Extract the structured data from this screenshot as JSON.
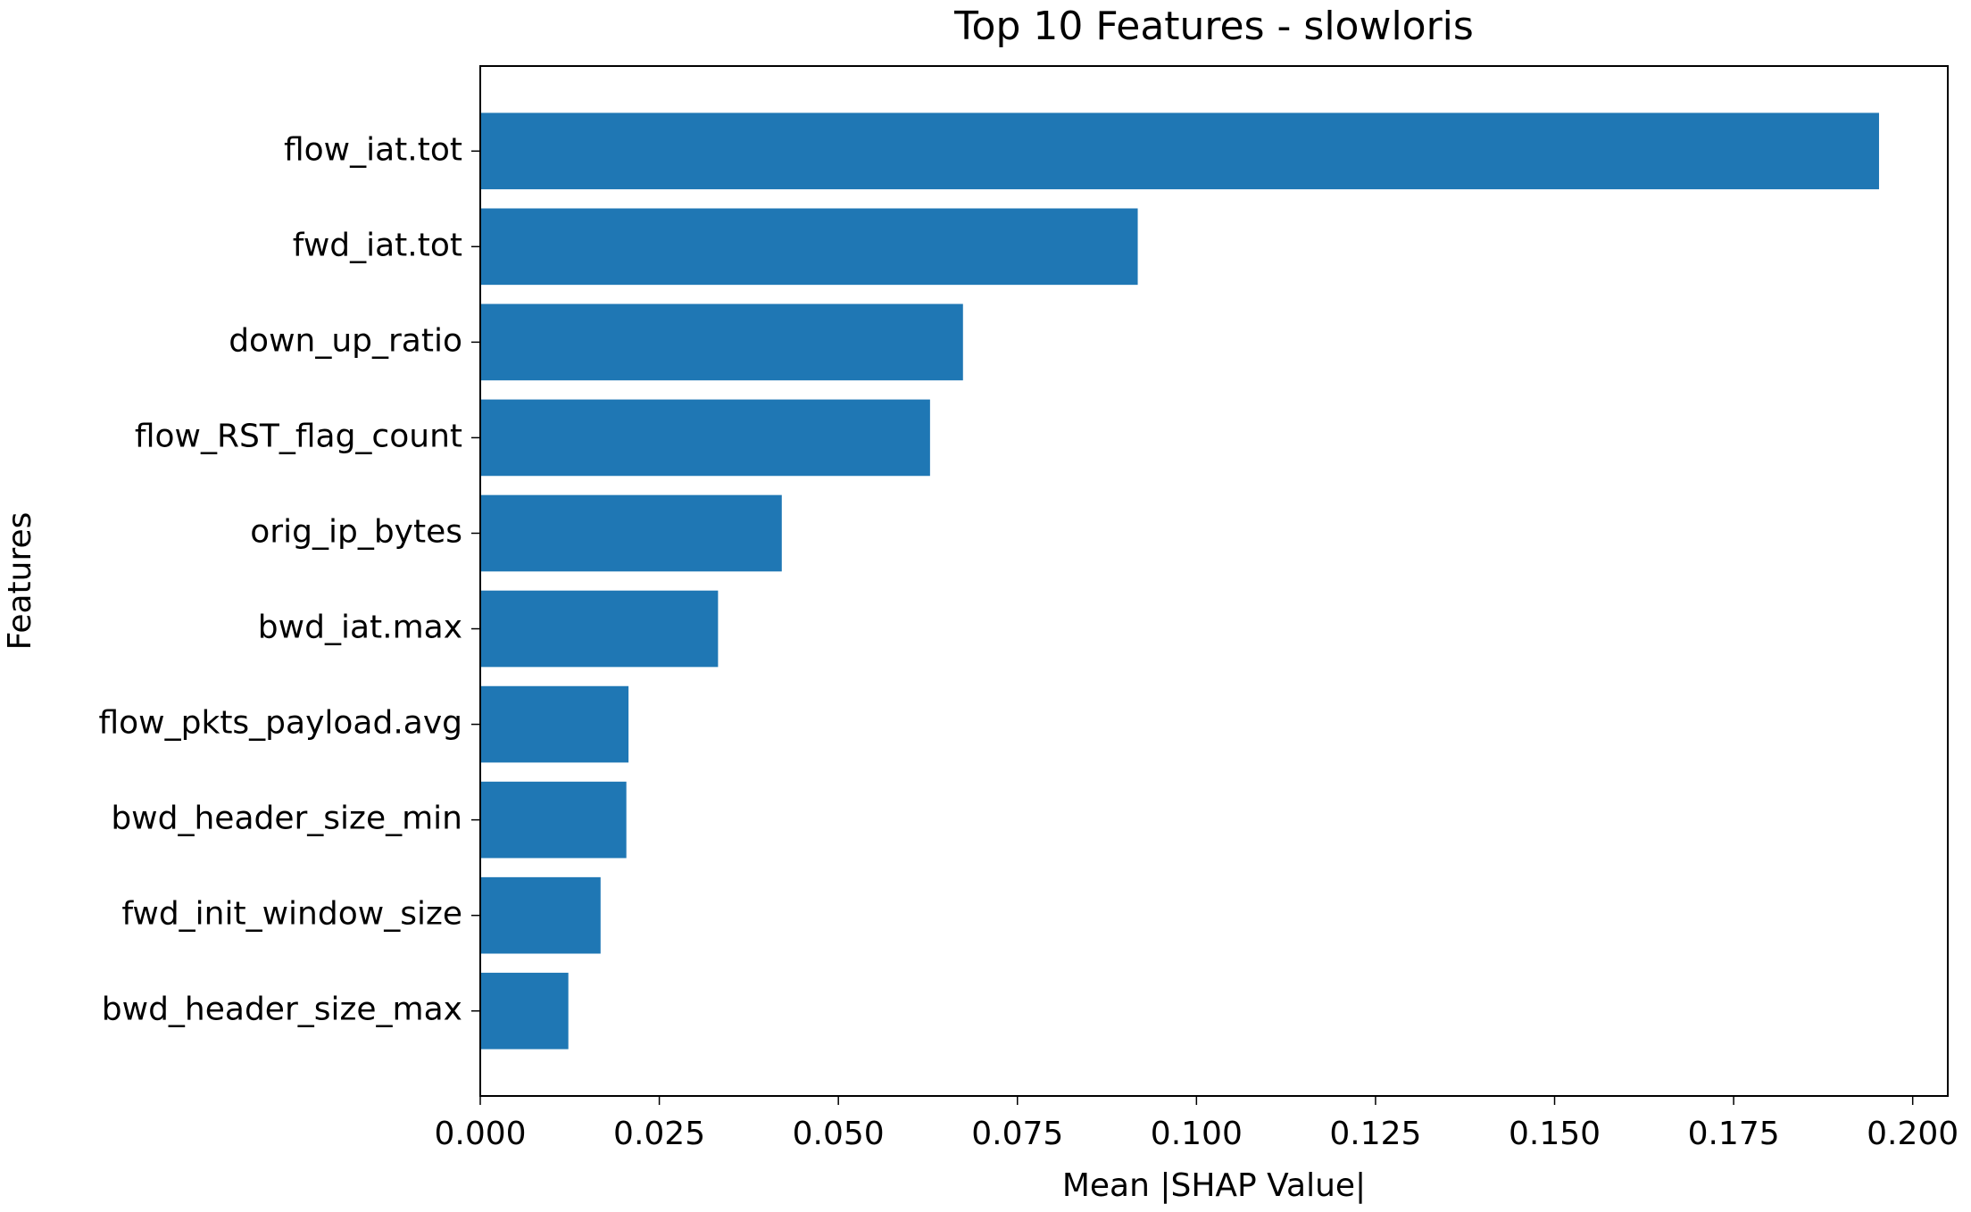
{
  "chart_data": {
    "type": "barh",
    "title": "Top 10 Features - slowloris",
    "x_label": "Mean |SHAP Value|",
    "y_label": "Features",
    "categories": [
      "flow_iat.tot",
      "fwd_iat.tot",
      "down_up_ratio",
      "flow_RST_flag_count",
      "orig_ip_bytes",
      "bwd_iat.max",
      "flow_pkts_payload.avg",
      "bwd_header_size_min",
      "fwd_init_window_size",
      "bwd_header_size_max"
    ],
    "values": [
      0.1953,
      0.0918,
      0.0674,
      0.0628,
      0.0421,
      0.0332,
      0.0207,
      0.0204,
      0.0168,
      0.0123
    ],
    "color": "#1f77b4",
    "xlim": [
      0,
      0.2049
    ],
    "xticks": [
      {
        "value": 0,
        "label": "0.000"
      },
      0.025,
      {
        "value": 0.05,
        "label": "0.050"
      },
      0.075,
      {
        "value": 0.1,
        "label": "0.100"
      },
      0.125,
      {
        "value": 0.15,
        "label": "0.150"
      },
      0.175,
      {
        "value": 0.2,
        "label": "0.200"
      }
    ],
    "grid": false
  }
}
